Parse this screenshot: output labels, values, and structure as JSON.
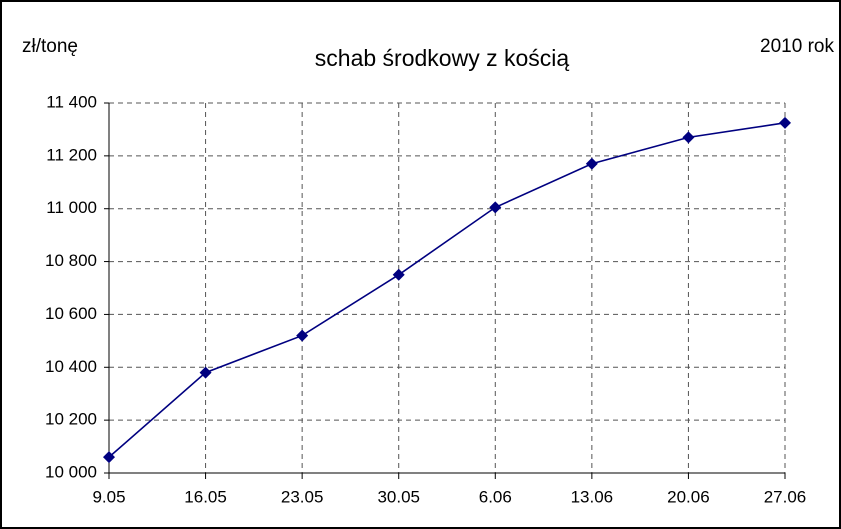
{
  "chart_data": {
    "type": "line",
    "title": "schab środkowy z kością",
    "y_label": "zł/tonę",
    "annotation": "2010 rok",
    "categories": [
      "9.05",
      "16.05",
      "23.05",
      "30.05",
      "6.06",
      "13.06",
      "20.06",
      "27.06"
    ],
    "series": [
      {
        "color": "#000080",
        "values": [
          10060,
          10380,
          10520,
          10750,
          11005,
          11170,
          11270,
          11325
        ]
      }
    ],
    "ylim": [
      10000,
      11400
    ],
    "yticks": [
      {
        "value": 10000,
        "label": "10 000"
      },
      {
        "value": 10200,
        "label": "10 200"
      },
      {
        "value": 10400,
        "label": "10 400"
      },
      {
        "value": 10600,
        "label": "10 600"
      },
      {
        "value": 10800,
        "label": "10 800"
      },
      {
        "value": 11000,
        "label": "11 000"
      },
      {
        "value": 11200,
        "label": "11 200"
      },
      {
        "value": 11400,
        "label": "11 400"
      }
    ],
    "grid": true
  }
}
